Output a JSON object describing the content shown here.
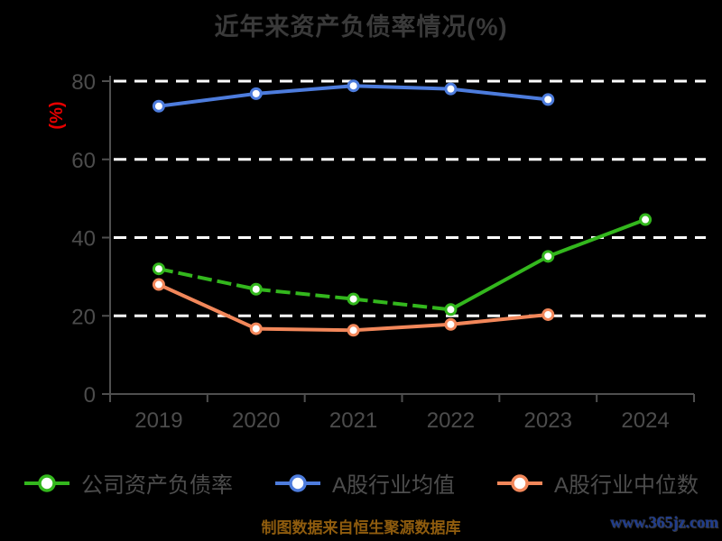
{
  "title": "近年来资产负债率情况(%)",
  "y_axis": {
    "unit_label": "(%)",
    "unit_color": "#e60000",
    "ticks": [
      0,
      20,
      40,
      60,
      80
    ],
    "max": 80
  },
  "x_axis": {
    "categories": [
      "2019",
      "2020",
      "2021",
      "2022",
      "2023",
      "2024"
    ]
  },
  "chart_data": {
    "type": "line",
    "title": "近年来资产负债率情况(%)",
    "categories": [
      "2019",
      "2020",
      "2021",
      "2022",
      "2023",
      "2024"
    ],
    "ylabel": "(%)",
    "ylim": [
      0,
      80
    ],
    "grid": true,
    "grid_style": "dashed-white-horizontal",
    "legend_position": "bottom",
    "series": [
      {
        "key": "company",
        "name": "公司资产负债率",
        "color": "#33b71d",
        "values": [
          32.0,
          26.8,
          24.3,
          21.6,
          35.2,
          44.6
        ],
        "dashed_segments": [
          0,
          1,
          2
        ]
      },
      {
        "key": "industry-mean",
        "name": "A股行业均值",
        "color": "#4d7cdd",
        "values": [
          73.6,
          76.8,
          78.8,
          78.0,
          75.3,
          null
        ],
        "dashed_segments": []
      },
      {
        "key": "industry-median",
        "name": "A股行业中位数",
        "color": "#f2875a",
        "values": [
          28.0,
          16.7,
          16.3,
          17.8,
          20.3,
          null
        ],
        "dashed_segments": []
      }
    ]
  },
  "legend": {
    "items": [
      {
        "label": "公司资产负债率",
        "color": "#33b71d"
      },
      {
        "label": "A股行业均值",
        "color": "#4d7cdd"
      },
      {
        "label": "A股行业中位数",
        "color": "#f2875a"
      }
    ]
  },
  "footer": {
    "source": "制图数据来自恒生聚源数据库",
    "source_color": "#8f5c0e",
    "watermark": "www.365jz.com",
    "watermark_color": "#1e3c8e"
  }
}
